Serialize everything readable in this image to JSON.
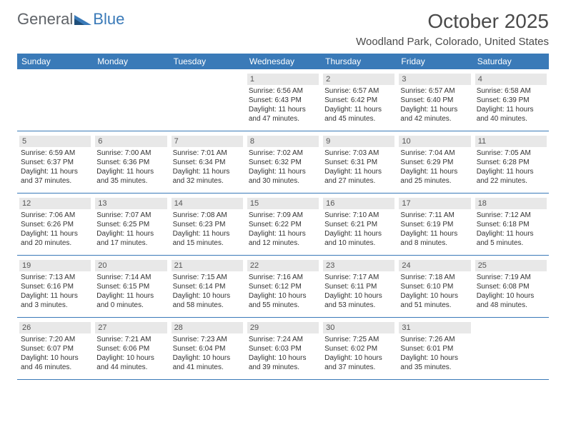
{
  "brand": {
    "part1": "General",
    "part2": "Blue"
  },
  "title": "October 2025",
  "location": "Woodland Park, Colorado, United States",
  "colors": {
    "accent": "#3a7ab8",
    "dayNumBg": "#e8e8e8",
    "text": "#333333",
    "headerText": "#4a4a4a",
    "background": "#ffffff"
  },
  "dayHeaders": [
    "Sunday",
    "Monday",
    "Tuesday",
    "Wednesday",
    "Thursday",
    "Friday",
    "Saturday"
  ],
  "weeks": [
    [
      {
        "n": "",
        "lines": []
      },
      {
        "n": "",
        "lines": []
      },
      {
        "n": "",
        "lines": []
      },
      {
        "n": "1",
        "lines": [
          "Sunrise: 6:56 AM",
          "Sunset: 6:43 PM",
          "Daylight: 11 hours",
          "and 47 minutes."
        ]
      },
      {
        "n": "2",
        "lines": [
          "Sunrise: 6:57 AM",
          "Sunset: 6:42 PM",
          "Daylight: 11 hours",
          "and 45 minutes."
        ]
      },
      {
        "n": "3",
        "lines": [
          "Sunrise: 6:57 AM",
          "Sunset: 6:40 PM",
          "Daylight: 11 hours",
          "and 42 minutes."
        ]
      },
      {
        "n": "4",
        "lines": [
          "Sunrise: 6:58 AM",
          "Sunset: 6:39 PM",
          "Daylight: 11 hours",
          "and 40 minutes."
        ]
      }
    ],
    [
      {
        "n": "5",
        "lines": [
          "Sunrise: 6:59 AM",
          "Sunset: 6:37 PM",
          "Daylight: 11 hours",
          "and 37 minutes."
        ]
      },
      {
        "n": "6",
        "lines": [
          "Sunrise: 7:00 AM",
          "Sunset: 6:36 PM",
          "Daylight: 11 hours",
          "and 35 minutes."
        ]
      },
      {
        "n": "7",
        "lines": [
          "Sunrise: 7:01 AM",
          "Sunset: 6:34 PM",
          "Daylight: 11 hours",
          "and 32 minutes."
        ]
      },
      {
        "n": "8",
        "lines": [
          "Sunrise: 7:02 AM",
          "Sunset: 6:32 PM",
          "Daylight: 11 hours",
          "and 30 minutes."
        ]
      },
      {
        "n": "9",
        "lines": [
          "Sunrise: 7:03 AM",
          "Sunset: 6:31 PM",
          "Daylight: 11 hours",
          "and 27 minutes."
        ]
      },
      {
        "n": "10",
        "lines": [
          "Sunrise: 7:04 AM",
          "Sunset: 6:29 PM",
          "Daylight: 11 hours",
          "and 25 minutes."
        ]
      },
      {
        "n": "11",
        "lines": [
          "Sunrise: 7:05 AM",
          "Sunset: 6:28 PM",
          "Daylight: 11 hours",
          "and 22 minutes."
        ]
      }
    ],
    [
      {
        "n": "12",
        "lines": [
          "Sunrise: 7:06 AM",
          "Sunset: 6:26 PM",
          "Daylight: 11 hours",
          "and 20 minutes."
        ]
      },
      {
        "n": "13",
        "lines": [
          "Sunrise: 7:07 AM",
          "Sunset: 6:25 PM",
          "Daylight: 11 hours",
          "and 17 minutes."
        ]
      },
      {
        "n": "14",
        "lines": [
          "Sunrise: 7:08 AM",
          "Sunset: 6:23 PM",
          "Daylight: 11 hours",
          "and 15 minutes."
        ]
      },
      {
        "n": "15",
        "lines": [
          "Sunrise: 7:09 AM",
          "Sunset: 6:22 PM",
          "Daylight: 11 hours",
          "and 12 minutes."
        ]
      },
      {
        "n": "16",
        "lines": [
          "Sunrise: 7:10 AM",
          "Sunset: 6:21 PM",
          "Daylight: 11 hours",
          "and 10 minutes."
        ]
      },
      {
        "n": "17",
        "lines": [
          "Sunrise: 7:11 AM",
          "Sunset: 6:19 PM",
          "Daylight: 11 hours",
          "and 8 minutes."
        ]
      },
      {
        "n": "18",
        "lines": [
          "Sunrise: 7:12 AM",
          "Sunset: 6:18 PM",
          "Daylight: 11 hours",
          "and 5 minutes."
        ]
      }
    ],
    [
      {
        "n": "19",
        "lines": [
          "Sunrise: 7:13 AM",
          "Sunset: 6:16 PM",
          "Daylight: 11 hours",
          "and 3 minutes."
        ]
      },
      {
        "n": "20",
        "lines": [
          "Sunrise: 7:14 AM",
          "Sunset: 6:15 PM",
          "Daylight: 11 hours",
          "and 0 minutes."
        ]
      },
      {
        "n": "21",
        "lines": [
          "Sunrise: 7:15 AM",
          "Sunset: 6:14 PM",
          "Daylight: 10 hours",
          "and 58 minutes."
        ]
      },
      {
        "n": "22",
        "lines": [
          "Sunrise: 7:16 AM",
          "Sunset: 6:12 PM",
          "Daylight: 10 hours",
          "and 55 minutes."
        ]
      },
      {
        "n": "23",
        "lines": [
          "Sunrise: 7:17 AM",
          "Sunset: 6:11 PM",
          "Daylight: 10 hours",
          "and 53 minutes."
        ]
      },
      {
        "n": "24",
        "lines": [
          "Sunrise: 7:18 AM",
          "Sunset: 6:10 PM",
          "Daylight: 10 hours",
          "and 51 minutes."
        ]
      },
      {
        "n": "25",
        "lines": [
          "Sunrise: 7:19 AM",
          "Sunset: 6:08 PM",
          "Daylight: 10 hours",
          "and 48 minutes."
        ]
      }
    ],
    [
      {
        "n": "26",
        "lines": [
          "Sunrise: 7:20 AM",
          "Sunset: 6:07 PM",
          "Daylight: 10 hours",
          "and 46 minutes."
        ]
      },
      {
        "n": "27",
        "lines": [
          "Sunrise: 7:21 AM",
          "Sunset: 6:06 PM",
          "Daylight: 10 hours",
          "and 44 minutes."
        ]
      },
      {
        "n": "28",
        "lines": [
          "Sunrise: 7:23 AM",
          "Sunset: 6:04 PM",
          "Daylight: 10 hours",
          "and 41 minutes."
        ]
      },
      {
        "n": "29",
        "lines": [
          "Sunrise: 7:24 AM",
          "Sunset: 6:03 PM",
          "Daylight: 10 hours",
          "and 39 minutes."
        ]
      },
      {
        "n": "30",
        "lines": [
          "Sunrise: 7:25 AM",
          "Sunset: 6:02 PM",
          "Daylight: 10 hours",
          "and 37 minutes."
        ]
      },
      {
        "n": "31",
        "lines": [
          "Sunrise: 7:26 AM",
          "Sunset: 6:01 PM",
          "Daylight: 10 hours",
          "and 35 minutes."
        ]
      },
      {
        "n": "",
        "lines": []
      }
    ]
  ]
}
